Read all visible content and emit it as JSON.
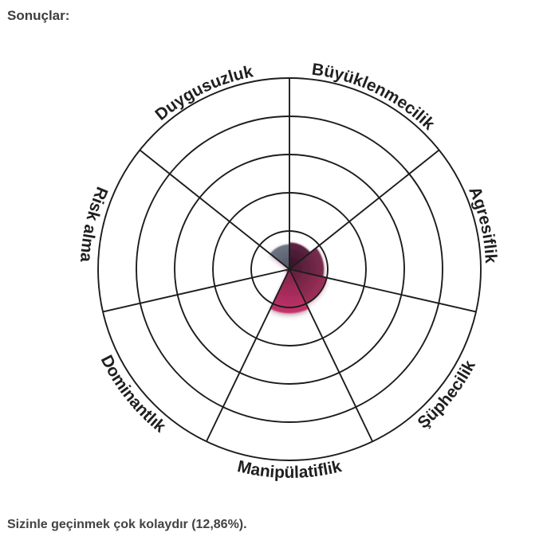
{
  "page": {
    "title": "Sonuçlar:",
    "caption": "Sizinle geçinmek çok kolaydır (12,86%)."
  },
  "chart_data": {
    "type": "polar-area",
    "title": "",
    "categories": [
      "Büyüklenmecilik",
      "Agresiflik",
      "Şüphecilik",
      "Manipülatiflik",
      "Dominantlık",
      "Risk alma",
      "Duygusuzluk"
    ],
    "slugs": [
      "buyuklenmecilik",
      "agresiflik",
      "suphecilik",
      "manipulatiflik",
      "dominantlik",
      "risk-alma",
      "duygusuzluk"
    ],
    "values": [
      14,
      18,
      20,
      23,
      2,
      0,
      13
    ],
    "unit": "percent",
    "value_axis_range": [
      0,
      100
    ],
    "rings": 5,
    "start_angle_deg": 0,
    "direction": "clockwise",
    "average_percent_label": "12,86%",
    "petal_colors_outer": [
      "#5e2442",
      "#7d2d4e",
      "#9e3057",
      "#c4326a",
      "#b02e60",
      "#8b8fa0",
      "#6f7585"
    ],
    "petal_colors_inner": [
      "#2f1023",
      "#441830",
      "#5a1e3b",
      "#7e2348",
      "#a02b58",
      "#8b8fa0",
      "#4f5464"
    ],
    "grid_color": "#1c1c1c",
    "label_color": "#1f1f1f"
  }
}
